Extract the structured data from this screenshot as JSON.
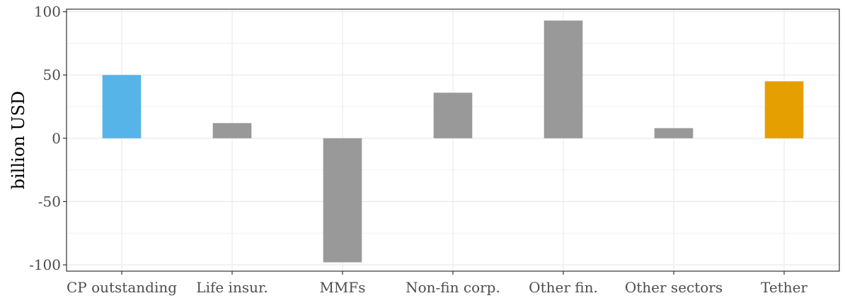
{
  "chart_data": {
    "type": "bar",
    "title": "",
    "xlabel": "",
    "ylabel": "billion USD",
    "ylim": [
      -105,
      102
    ],
    "yticks": [
      -100,
      -50,
      0,
      50,
      100
    ],
    "ytick_labels": [
      "-100",
      "-50",
      "0",
      "50",
      "100"
    ],
    "grid": true,
    "categories": [
      "CP outstanding",
      "Life insur.",
      "MMFs",
      "Non-fin corp.",
      "Other fin.",
      "Other sectors",
      "Tether"
    ],
    "values": [
      50,
      12,
      -98,
      36,
      93,
      8,
      45
    ],
    "colors": [
      "#56B4E9",
      "#999999",
      "#999999",
      "#999999",
      "#999999",
      "#999999",
      "#E69F00"
    ]
  }
}
